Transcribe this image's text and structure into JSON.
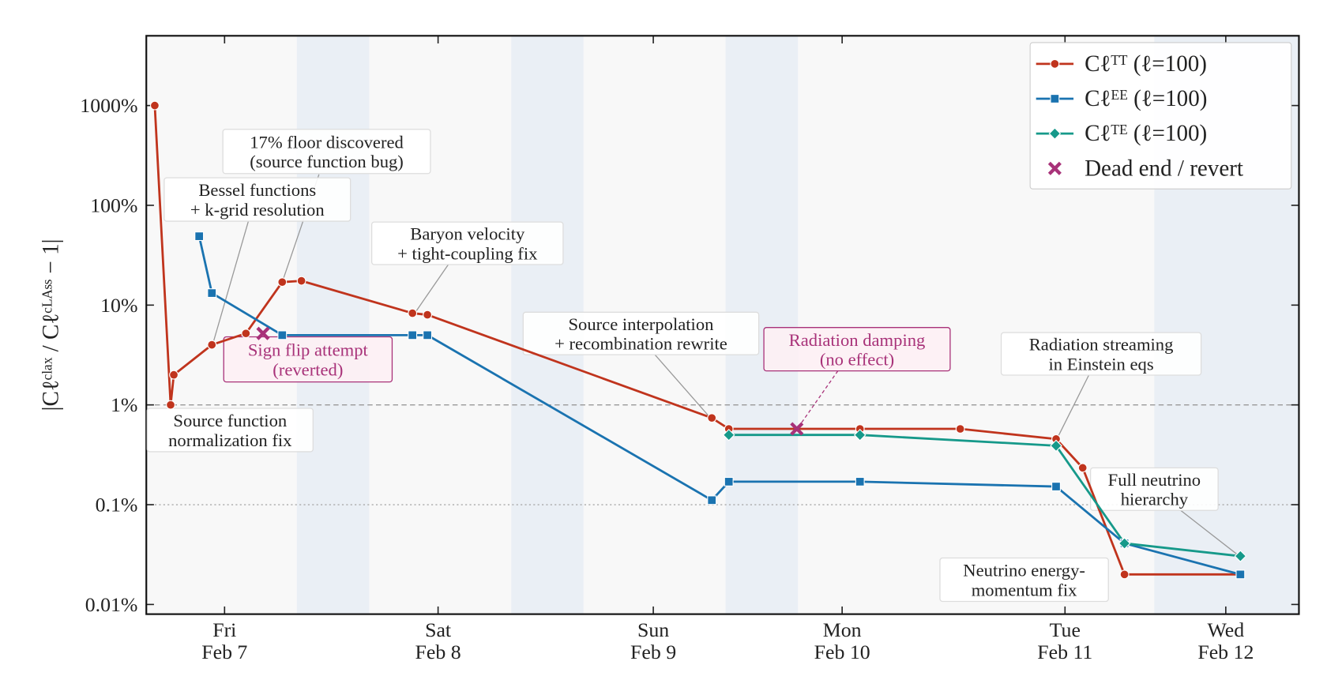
{
  "chart_data": {
    "type": "line",
    "ylabel": "|Cℓᶜˡᵃˣ / Cℓᶜᴸᴬˢˢ − 1|",
    "yscale": "log",
    "ylim": [
      0.008,
      5000
    ],
    "yticks": [
      {
        "value": 0.01,
        "label": "0.01%"
      },
      {
        "value": 0.1,
        "label": "0.1%"
      },
      {
        "value": 1,
        "label": "1%"
      },
      {
        "value": 10,
        "label": "10%"
      },
      {
        "value": 100,
        "label": "100%"
      },
      {
        "value": 1000,
        "label": "1000%"
      }
    ],
    "xlim": [
      6.63,
      12.45
    ],
    "xticks": [
      {
        "value": 7,
        "label": "Fri\nFeb 7"
      },
      {
        "value": 8,
        "label": "Sat\nFeb 8"
      },
      {
        "value": 9,
        "label": "Sun\nFeb 9"
      },
      {
        "value": 10,
        "label": "Mon\nFeb 10"
      },
      {
        "value": 11,
        "label": "Tue\nFeb 11"
      },
      {
        "value": 12,
        "label": "Wed\nFeb 12"
      }
    ],
    "reference_lines": [
      {
        "value": 1,
        "style": "dashed"
      },
      {
        "value": 0.1,
        "style": "dotted"
      }
    ],
    "legend": "upper right",
    "series": [
      {
        "name": "Cℓᵀᵀ  (ℓ=100)",
        "color": "#c0341d",
        "marker": "circle",
        "line": true,
        "x": [
          6.67,
          6.745,
          6.76,
          6.94,
          7.1,
          7.27,
          7.36,
          7.88,
          7.95,
          9.31,
          9.4,
          10.08,
          10.53,
          10.96,
          11.11,
          11.37,
          12.09
        ],
        "values": [
          1000,
          1.0,
          2,
          4,
          5.2,
          17,
          17.5,
          8.3,
          8.0,
          0.74,
          0.575,
          0.575,
          0.575,
          0.455,
          0.234,
          0.02,
          0.02
        ]
      },
      {
        "name": "Cℓᴱᴱ  (ℓ=100)",
        "color": "#1a73b0",
        "marker": "square",
        "line": true,
        "x": [
          6.88,
          6.94,
          7.27,
          7.88,
          7.95,
          9.31,
          9.4,
          10.08,
          10.96,
          11.37,
          12.09
        ],
        "values": [
          49,
          13.2,
          5,
          5,
          5,
          0.111,
          0.17,
          0.17,
          0.152,
          0.041,
          0.02
        ]
      },
      {
        "name": "Cℓᵀᴱ  (ℓ=100)",
        "color": "#16998a",
        "marker": "diamond",
        "line": true,
        "x": [
          9.4,
          10.08,
          10.96,
          11.37,
          12.09
        ],
        "values": [
          0.5,
          0.5,
          0.39,
          0.041,
          0.0305
        ]
      },
      {
        "name": "Dead end / revert",
        "color": "#a83279",
        "marker": "x",
        "line": false,
        "x": [
          7.18,
          9.76
        ],
        "values": [
          5.2,
          0.575
        ]
      }
    ],
    "annotations": [
      {
        "text": "17% floor discovered\n(source function bug)",
        "color": "#222222"
      },
      {
        "text": "Bessel functions\n+ k-grid resolution",
        "color": "#222222"
      },
      {
        "text": "Baryon velocity\n+ tight-coupling fix",
        "color": "#222222"
      },
      {
        "text": "Source interpolation\n+ recombination rewrite",
        "color": "#222222"
      },
      {
        "text": "Radiation damping\n(no effect)",
        "color": "#a83279"
      },
      {
        "text": "Radiation streaming\nin Einstein eqs",
        "color": "#222222"
      },
      {
        "text": "Source function\nnormalization fix",
        "color": "#222222"
      },
      {
        "text": "Sign flip attempt\n(reverted)",
        "color": "#a83279"
      },
      {
        "text": "Full neutrino\nhierarchy",
        "color": "#222222"
      },
      {
        "text": "Neutrino energy-\nmomentum fix",
        "color": "#222222"
      }
    ]
  }
}
